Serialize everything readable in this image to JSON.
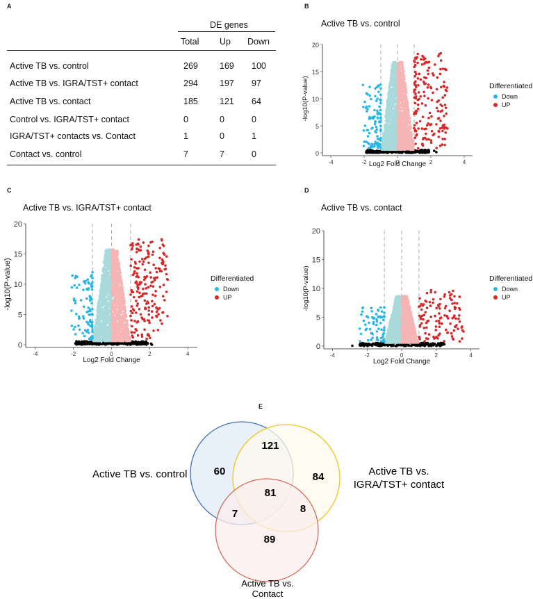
{
  "panels": {
    "a": "A",
    "b": "B",
    "c": "C",
    "d": "D",
    "e": "E"
  },
  "table": {
    "group_header": "DE genes",
    "columns": [
      "Total",
      "Up",
      "Down"
    ],
    "rows": [
      {
        "label": "Active TB vs. control",
        "total": "269",
        "up": "169",
        "down": "100"
      },
      {
        "label": "Active TB vs. IGRA/TST+ contact",
        "total": "294",
        "up": "197",
        "down": "97"
      },
      {
        "label": "Active TB  vs. contact",
        "total": "185",
        "up": "121",
        "down": "64"
      },
      {
        "label": "Control vs. IGRA/TST+ contact",
        "total": "0",
        "up": "0",
        "down": "0"
      },
      {
        "label": "IGRA/TST+ contacts vs. Contact",
        "total": "1",
        "up": "0",
        "down": "1"
      },
      {
        "label": "Contact vs. control",
        "total": "7",
        "up": "7",
        "down": "0"
      }
    ]
  },
  "legend": {
    "title": "Differentiated",
    "down": "Down",
    "up": "UP"
  },
  "colors": {
    "down": "#29b6e6",
    "up": "#d62828",
    "down_light": "#a8dadc",
    "up_light": "#f5b5b5",
    "ns": "#000000"
  },
  "chart_data": [
    {
      "type": "scatter",
      "panel": "B",
      "title": "Active TB vs. control",
      "xlabel": "Log2 Fold Change",
      "ylabel": "-log10(P-value)",
      "xlim": [
        -4.5,
        4.5
      ],
      "ylim": [
        0,
        20
      ],
      "xticks": [
        "-4",
        "-2",
        "0",
        "2",
        "4"
      ],
      "yticks": [
        "0",
        "5",
        "10",
        "15",
        "20"
      ],
      "vlines": [
        -1,
        0,
        1
      ],
      "max_y": 17,
      "spread": 1,
      "up_count": 169,
      "down_count": 100
    },
    {
      "type": "scatter",
      "panel": "C",
      "title": "Active TB vs. IGRA/TST+ contact",
      "xlabel": "Log2 Fold Change",
      "ylabel": "-log10(P-value)",
      "xlim": [
        -4.5,
        4.5
      ],
      "ylim": [
        0,
        20
      ],
      "xticks": [
        "-4",
        "-2",
        "0",
        "2",
        "4"
      ],
      "yticks": [
        "0",
        "5",
        "10",
        "15",
        "20"
      ],
      "vlines": [
        -1,
        0,
        1
      ],
      "max_y": 16,
      "spread": 1,
      "up_count": 197,
      "down_count": 97
    },
    {
      "type": "scatter",
      "panel": "D",
      "title": "Active TB  vs. contact",
      "xlabel": "Log2 Fold Change",
      "ylabel": "-log10(P-value)",
      "xlim": [
        -4.5,
        4.5
      ],
      "ylim": [
        0,
        20
      ],
      "xticks": [
        "-4",
        "-2",
        "0",
        "2",
        "4"
      ],
      "yticks": [
        "0",
        "5",
        "10",
        "15",
        "20"
      ],
      "vlines": [
        -1,
        0,
        1
      ],
      "max_y": 8.5,
      "spread": 1.3,
      "up_count": 121,
      "down_count": 64
    }
  ],
  "venn": {
    "labels": {
      "control": "Active TB vs. control",
      "igra": [
        "Active TB vs.",
        "IGRA/TST+ contact"
      ],
      "contact": [
        "Active TB vs.",
        "Contact"
      ]
    },
    "regions": {
      "control_only": "60",
      "control_igra": "121",
      "igra_only": "84",
      "all_three": "81",
      "control_contact": "7",
      "igra_contact": "8",
      "contact_only": "89"
    },
    "colors": {
      "control": "#3f6fb5",
      "igra": "#f0c419",
      "contact": "#d66a5a",
      "control_fill": "#e6eef8",
      "igra_fill": "#fdf9ec",
      "contact_fill": "#fbeeee"
    }
  }
}
